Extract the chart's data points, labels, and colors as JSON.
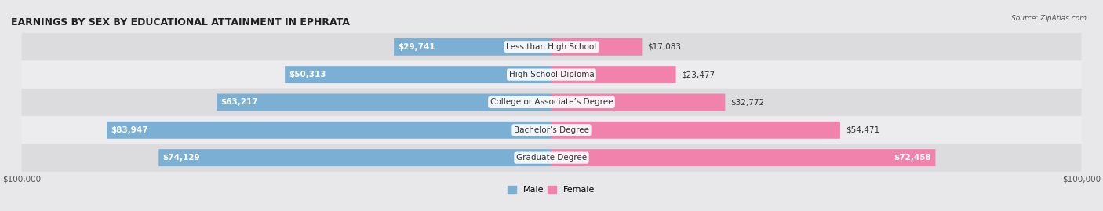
{
  "title": "EARNINGS BY SEX BY EDUCATIONAL ATTAINMENT IN EPHRATA",
  "source": "Source: ZipAtlas.com",
  "categories": [
    "Less than High School",
    "High School Diploma",
    "College or Associate’s Degree",
    "Bachelor’s Degree",
    "Graduate Degree"
  ],
  "male_values": [
    29741,
    50313,
    63217,
    83947,
    74129
  ],
  "female_values": [
    17083,
    23477,
    32772,
    54471,
    72458
  ],
  "male_color": "#7bafd4",
  "female_color": "#f082ac",
  "max_value": 100000,
  "bg_outer": "#e8e8ea",
  "bg_row_even": "#e4e4e6",
  "bg_row_odd": "#f0f0f2",
  "title_fontsize": 9,
  "label_fontsize": 7.5,
  "value_fontsize": 7.5,
  "tick_fontsize": 7.5,
  "legend_fontsize": 8
}
